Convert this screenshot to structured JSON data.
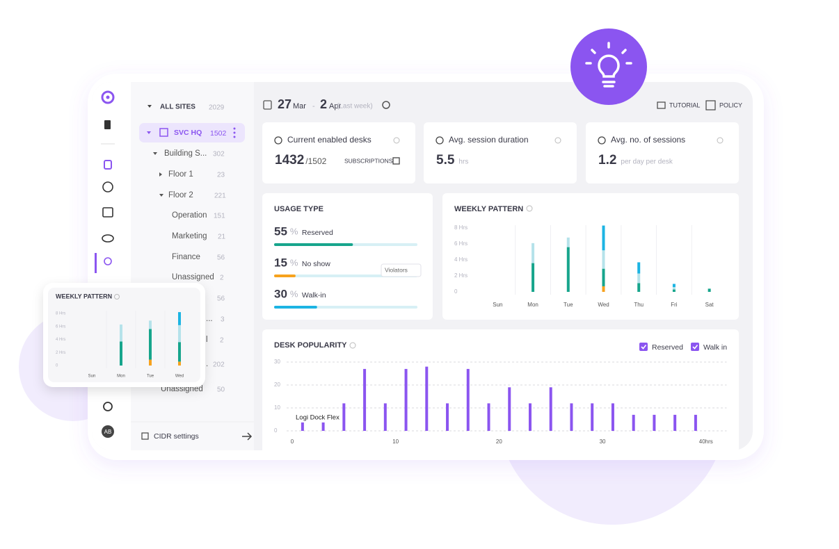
{
  "sidebar": {
    "avatar": "AB"
  },
  "tree": {
    "root": {
      "label": "ALL SITES",
      "count": 2029
    },
    "site": {
      "label": "SVC HQ",
      "count": 1502
    },
    "items": [
      {
        "label": "Building S...",
        "count": 302
      },
      {
        "label": "Floor 1",
        "count": 23
      },
      {
        "label": "Floor 2",
        "count": 221
      },
      {
        "label": "Operation",
        "count": 151
      },
      {
        "label": "Marketing",
        "count": 21
      },
      {
        "label": "Finance",
        "count": 56
      },
      {
        "label": "Unassigned",
        "count": 2
      },
      {
        "count": 56
      },
      {
        "label": "...",
        "count": 3
      },
      {
        "label": "l",
        "count": 2
      },
      {
        "label": ".",
        "count": 202
      },
      {
        "label": "Unassigned",
        "count": 50
      }
    ],
    "footer": "CIDR settings"
  },
  "header": {
    "date": {
      "start_day": "27",
      "start_month": "Mar",
      "separator": "-",
      "end_day": "2",
      "end_month": "Apr",
      "note": "(Last week)"
    },
    "tutorial": "TUTORIAL",
    "policy": "POLICY"
  },
  "kpis": [
    {
      "title": "Current enabled desks",
      "value": 1432,
      "total": "/1502",
      "link": "SUBSCRIPTIONS"
    },
    {
      "title": "Avg. session duration",
      "value": 5.5,
      "unit": "hrs"
    },
    {
      "title": "Avg. no. of sessions",
      "value": 1.2,
      "unit": "per day per desk"
    }
  ],
  "usage": {
    "title": "USAGE TYPE",
    "unit": "%",
    "rows": [
      {
        "value": 55,
        "label": "Reserved",
        "color": "#17a58c"
      },
      {
        "value": 15,
        "label": "No show",
        "color": "#f6a21e"
      },
      {
        "value": 30,
        "label": "Walk-in",
        "color": "#1cb4e3"
      }
    ],
    "violators": "Violators"
  },
  "chart_data": [
    {
      "type": "bar",
      "stacked": true,
      "title": "WEEKLY PATTERN",
      "categories": [
        "Sun",
        "Mon",
        "Tue",
        "Wed",
        "Thu",
        "Fri",
        "Sat"
      ],
      "series": [
        {
          "color": "#f6a21e",
          "values": [
            0,
            0,
            0,
            0.7,
            0,
            0,
            0
          ]
        },
        {
          "color": "#17a58c",
          "values": [
            0,
            3.6,
            5.6,
            2.2,
            1.1,
            0.3,
            0.4
          ]
        },
        {
          "color": "#b5e2ea",
          "values": [
            0,
            2.5,
            1.2,
            2.3,
            1.2,
            0.3,
            0
          ]
        },
        {
          "color": "#1cb4e3",
          "values": [
            0,
            0,
            0,
            3.1,
            1.4,
            0.4,
            0
          ]
        }
      ],
      "ylim": [
        0,
        8
      ],
      "yticks": [
        0,
        {
          "value": 2,
          "label": "2 Hrs"
        },
        {
          "value": 4,
          "label": "4 Hrs"
        },
        {
          "value": 6,
          "label": "6 Hrs"
        },
        {
          "value": 8,
          "label": "8 Hrs"
        }
      ]
    },
    {
      "type": "bar",
      "title": "DESK POPULARITY",
      "filters": [
        "Reserved",
        "Walk in"
      ],
      "annotation": "Logi Dock Flex",
      "x": [
        1,
        3,
        5,
        7,
        9,
        11,
        13,
        15,
        17,
        19,
        21,
        23,
        25,
        27,
        29,
        31,
        33,
        35,
        37,
        39
      ],
      "values": [
        4,
        4,
        12,
        27,
        12,
        27,
        28,
        12,
        27,
        12,
        19,
        12,
        19,
        12,
        12,
        12,
        7,
        7,
        7,
        7
      ],
      "color": "#8b55f0",
      "xlim": [
        0,
        42
      ],
      "xticks": [
        0,
        10,
        20,
        30,
        {
          "value": 40,
          "label": "40hrs"
        }
      ],
      "ylim": [
        0,
        30
      ],
      "yticks": [
        0,
        10,
        20,
        30
      ],
      "grid": true
    },
    {
      "type": "bar",
      "stacked": true,
      "title": "WEEKLY PATTERN",
      "categories": [
        "Sun",
        "Mon",
        "Tue",
        "Wed"
      ],
      "series": [
        {
          "color": "#f6a21e",
          "values": [
            0,
            0,
            0.9,
            0.6
          ]
        },
        {
          "color": "#17a58c",
          "values": [
            0,
            3.7,
            4.7,
            3.0
          ]
        },
        {
          "color": "#b5e2ea",
          "values": [
            0,
            2.6,
            1.3,
            2.6
          ]
        },
        {
          "color": "#1cb4e3",
          "values": [
            0,
            0,
            0,
            2.0
          ]
        }
      ],
      "ylim": [
        0,
        8
      ],
      "yticks": [
        0,
        {
          "value": 2,
          "label": "2 Hrs"
        },
        {
          "value": 4,
          "label": "4 Hrs"
        },
        {
          "value": 6,
          "label": "6 Hrs"
        },
        {
          "value": 8,
          "label": "8 Hrs"
        }
      ]
    }
  ]
}
